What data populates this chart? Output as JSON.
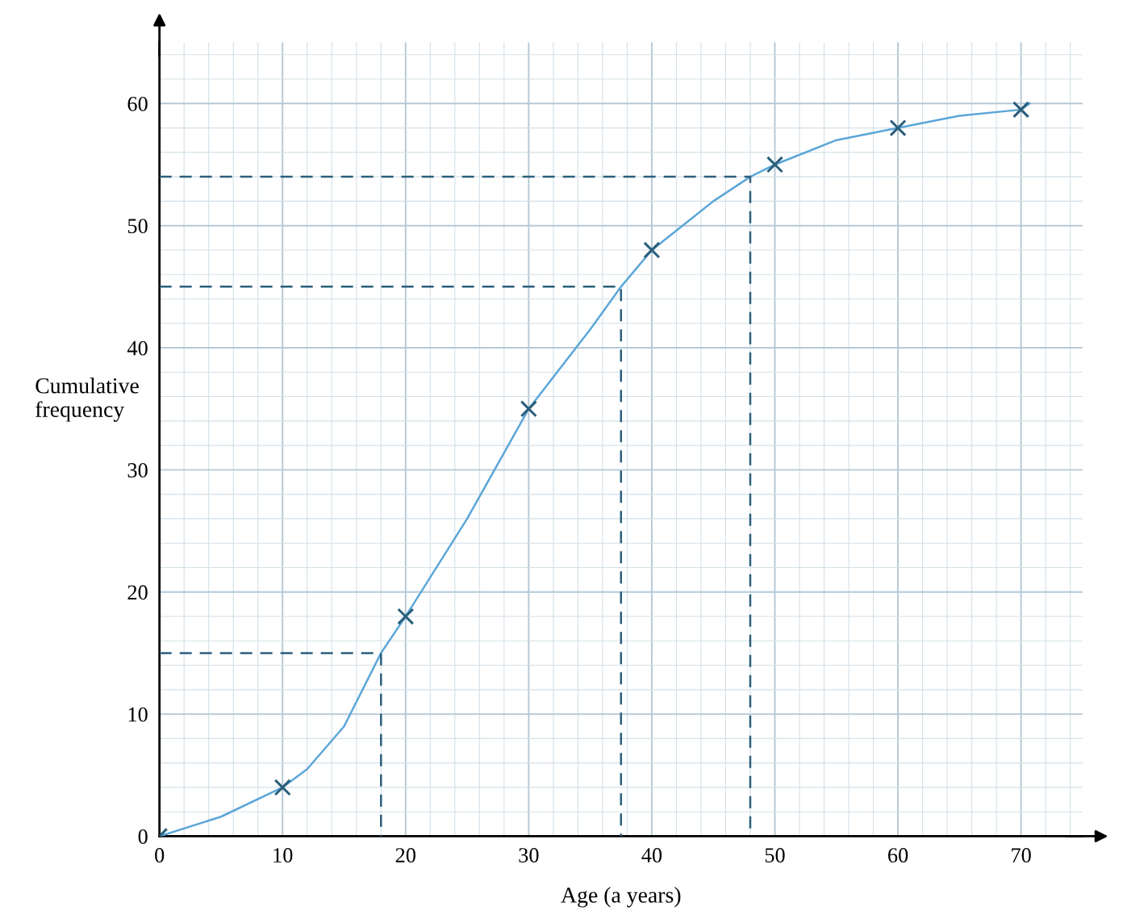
{
  "chart_data": {
    "type": "line",
    "xlabel": "Age (a years)",
    "ylabel": "Cumulative\nfrequency",
    "xlim": [
      0,
      75
    ],
    "ylim": [
      0,
      65
    ],
    "xticks": [
      0,
      10,
      20,
      30,
      40,
      50,
      60,
      70
    ],
    "yticks": [
      0,
      10,
      20,
      30,
      40,
      50,
      60
    ],
    "grid": true,
    "legend": false,
    "series": [
      {
        "color": "#5ba6d8",
        "line_style": "solid",
        "marker": "none",
        "x": [
          0,
          5,
          10,
          12,
          15,
          18,
          20,
          25,
          30,
          35,
          37.5,
          40,
          45,
          48,
          50,
          55,
          60,
          65,
          70,
          70.7
        ],
        "values": [
          0,
          1.6,
          4,
          5.5,
          9,
          15,
          18,
          26,
          35,
          41.5,
          45,
          48,
          52,
          54,
          55,
          57,
          58,
          59,
          59.5,
          60
        ]
      },
      {
        "type": "scatter",
        "color": "#2b5f7c",
        "marker": "cross",
        "x": [
          0,
          10,
          20,
          30,
          40,
          50,
          60,
          70
        ],
        "values": [
          0,
          4,
          18,
          35,
          48,
          55,
          58,
          59.5
        ]
      },
      {
        "color": "#2b5f7c",
        "line_style": "dashed",
        "marker": "none",
        "x": [
          0,
          18,
          18
        ],
        "values": [
          15,
          15,
          0
        ]
      },
      {
        "color": "#2b5f7c",
        "line_style": "dashed",
        "marker": "none",
        "x": [
          0,
          37.5,
          37.5
        ],
        "values": [
          45,
          45,
          0
        ]
      },
      {
        "color": "#2b5f7c",
        "line_style": "dashed",
        "marker": "none",
        "x": [
          0,
          48,
          48
        ],
        "values": [
          54,
          54,
          0
        ]
      }
    ]
  }
}
